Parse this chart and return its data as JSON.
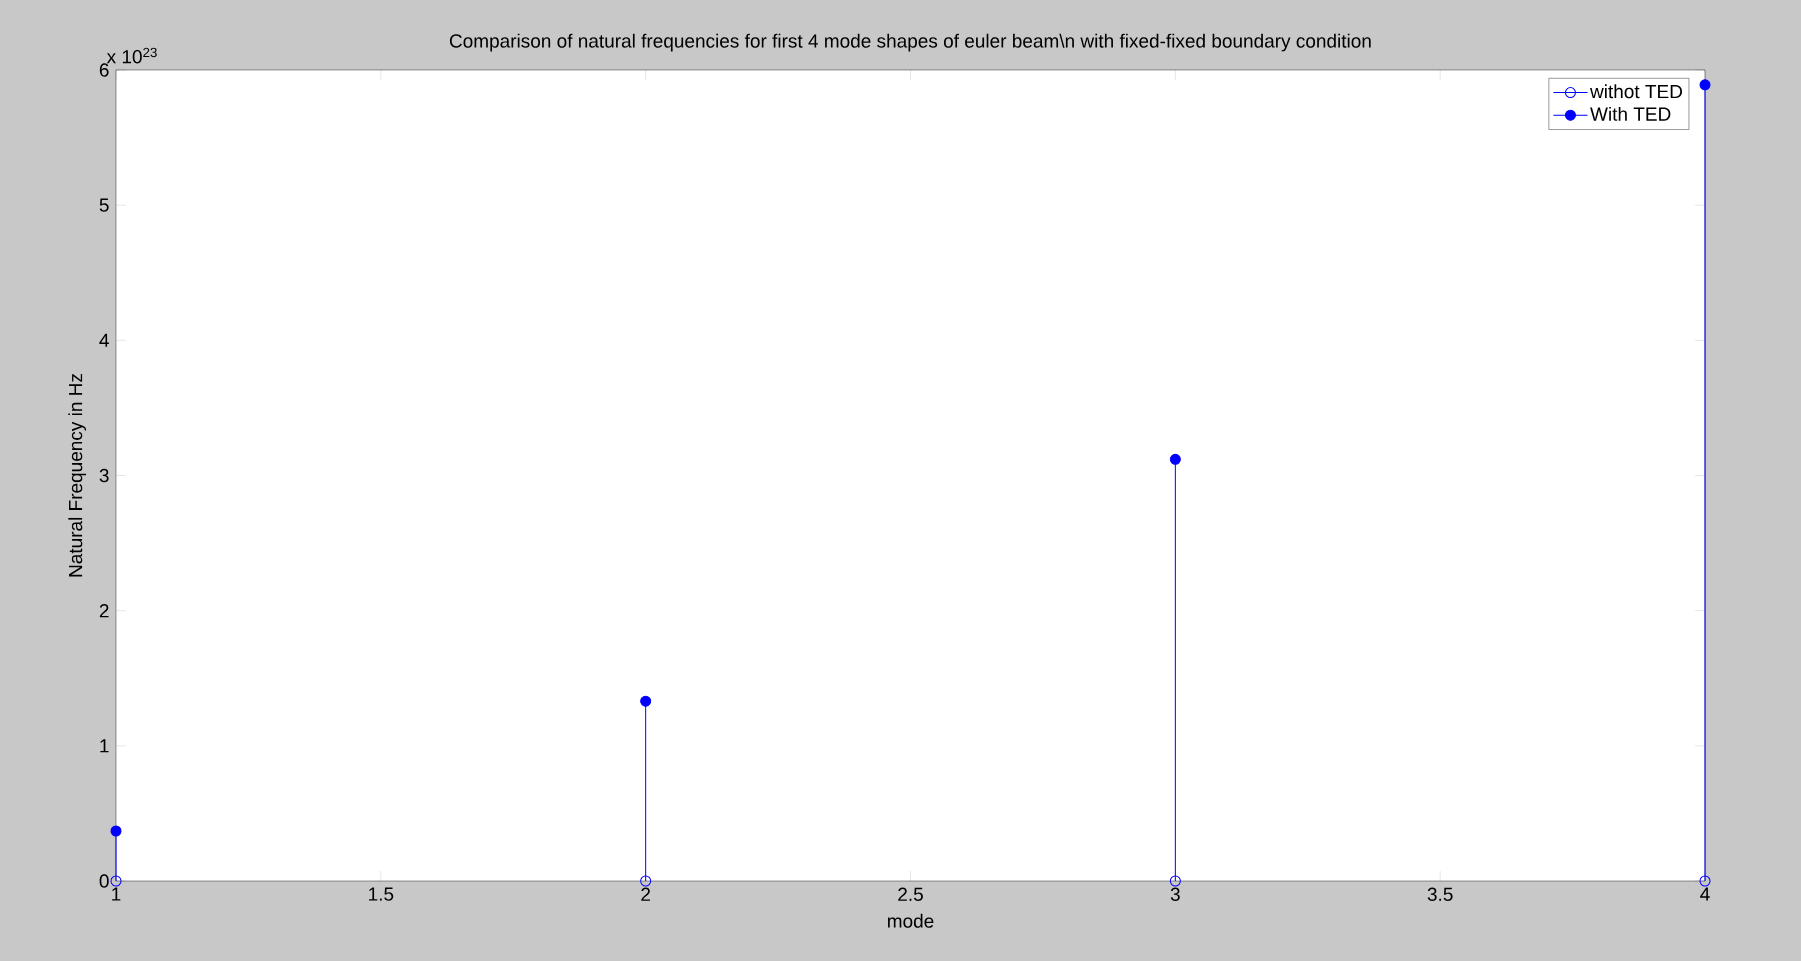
{
  "chart_data": {
    "type": "lollipop",
    "title": "Comparison of natural frequencies for first 4 mode shapes of euler beam\\n with fixed-fixed boundary condition",
    "xlabel": "mode",
    "ylabel": "Natural Frequency in Hz",
    "x": [
      1,
      2,
      3,
      4
    ],
    "series": [
      {
        "name": "withot TED",
        "color": "#0000ff",
        "values": [
          0,
          0,
          0,
          0
        ]
      },
      {
        "name": "With TED",
        "color": "#0000ff",
        "values": [
          0.37,
          1.33,
          3.12,
          5.89
        ]
      }
    ],
    "xlim": [
      1,
      4
    ],
    "ylim": [
      0,
      6
    ],
    "xticks": [
      1,
      1.5,
      2,
      2.5,
      3,
      3.5,
      4
    ],
    "yticks": [
      0,
      1,
      2,
      3,
      4,
      5,
      6
    ],
    "annotations": [
      "x 10$^{23}$"
    ],
    "marker": "circle",
    "legend": "top right",
    "grid": false
  }
}
